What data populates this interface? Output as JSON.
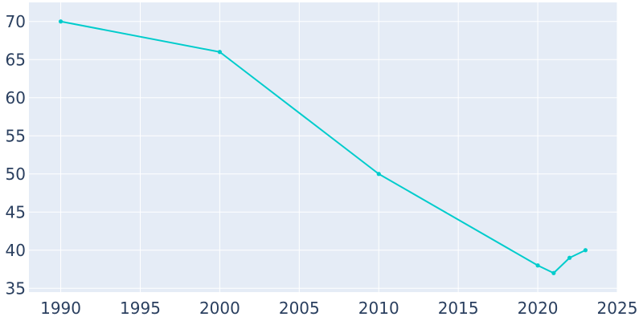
{
  "chart_data": {
    "type": "line",
    "title": "",
    "xlabel": "",
    "ylabel": "",
    "xlim": [
      1988,
      2025
    ],
    "ylim": [
      34.5,
      72.5
    ],
    "x_ticks": [
      1990,
      1995,
      2000,
      2005,
      2010,
      2015,
      2020,
      2025
    ],
    "y_ticks": [
      35,
      40,
      45,
      50,
      55,
      60,
      65,
      70
    ],
    "x_tick_labels": [
      "1990",
      "1995",
      "2000",
      "2005",
      "2010",
      "2015",
      "2020",
      "2025"
    ],
    "y_tick_labels": [
      "35",
      "40",
      "45",
      "50",
      "55",
      "60",
      "65",
      "70"
    ],
    "grid": true,
    "legend": "none",
    "series": [
      {
        "x": [
          1990,
          2000,
          2010,
          2020,
          2021,
          2022,
          2023
        ],
        "y": [
          70,
          66,
          50,
          38,
          37,
          39,
          40
        ]
      }
    ]
  },
  "colors": {
    "plot_background": "#e5ecf6",
    "grid": "#ffffff",
    "line": "#00cccc",
    "tick_text": "#2a3f5f"
  }
}
